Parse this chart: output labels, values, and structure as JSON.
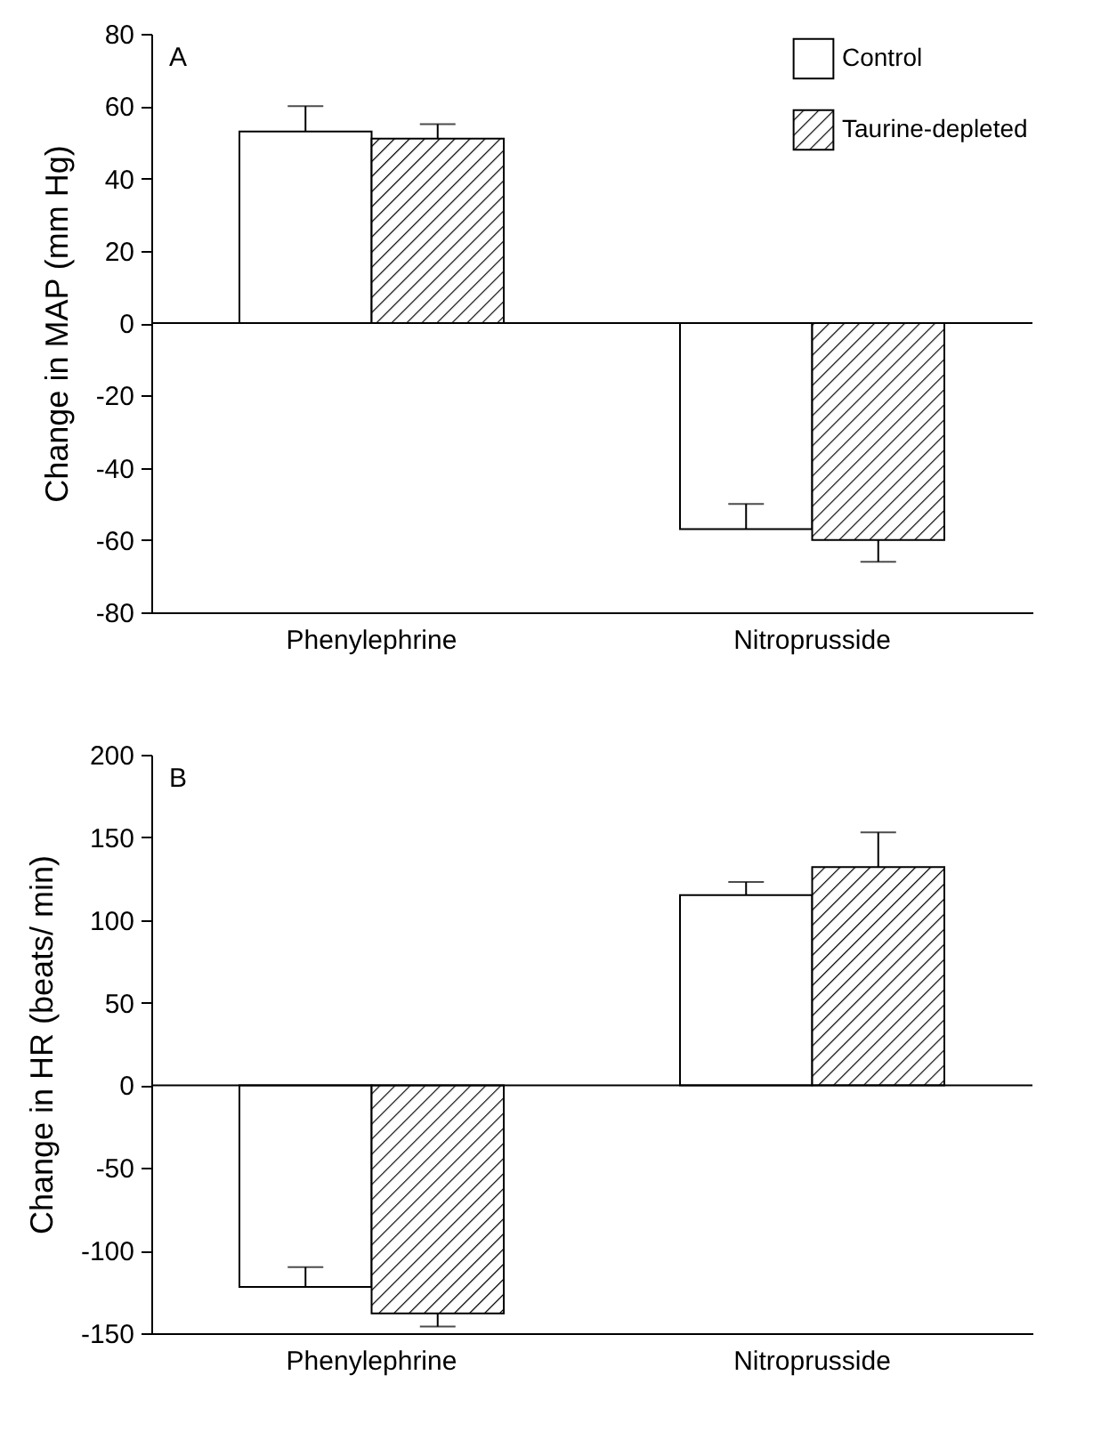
{
  "chart_data": [
    {
      "type": "bar",
      "title": "A",
      "ylabel": "Change in MAP (mm Hg)",
      "categories": [
        "Phenylephrine",
        "Nitroprusside"
      ],
      "ylim": [
        -80,
        80
      ],
      "yticks": [
        -80,
        -60,
        -40,
        -20,
        0,
        20,
        40,
        60,
        80
      ],
      "legend": "top right",
      "grid": false,
      "ref_lines": [
        {
          "axis": "y",
          "value": 0
        }
      ],
      "series": [
        {
          "name": "Control",
          "color": "#ffffff",
          "values": [
            53,
            -57
          ],
          "errors": [
            [
              53,
              60
            ],
            [
              -57,
              -50
            ]
          ]
        },
        {
          "name": "Taurine-depleted",
          "color": "#000000",
          "values": [
            51,
            -60
          ],
          "errors": [
            [
              51,
              55
            ],
            [
              -66,
              -60
            ]
          ]
        }
      ]
    },
    {
      "type": "bar",
      "title": "B",
      "ylabel": "Change in HR (beats/ min)",
      "categories": [
        "Phenylephrine",
        "Nitroprusside"
      ],
      "ylim": [
        -150,
        200
      ],
      "yticks": [
        -150,
        -100,
        -50,
        0,
        50,
        100,
        150,
        200
      ],
      "legend": false,
      "grid": false,
      "ref_lines": [
        {
          "axis": "y",
          "value": 0
        }
      ],
      "series": [
        {
          "color": "#ffffff",
          "values": [
            -122,
            115
          ],
          "errors": [
            [
              -122,
              -110
            ],
            [
              115,
              123
            ]
          ]
        },
        {
          "color": "#000000",
          "values": [
            -138,
            132
          ],
          "errors": [
            [
              -146,
              -138
            ],
            [
              132,
              153
            ]
          ]
        }
      ]
    }
  ]
}
